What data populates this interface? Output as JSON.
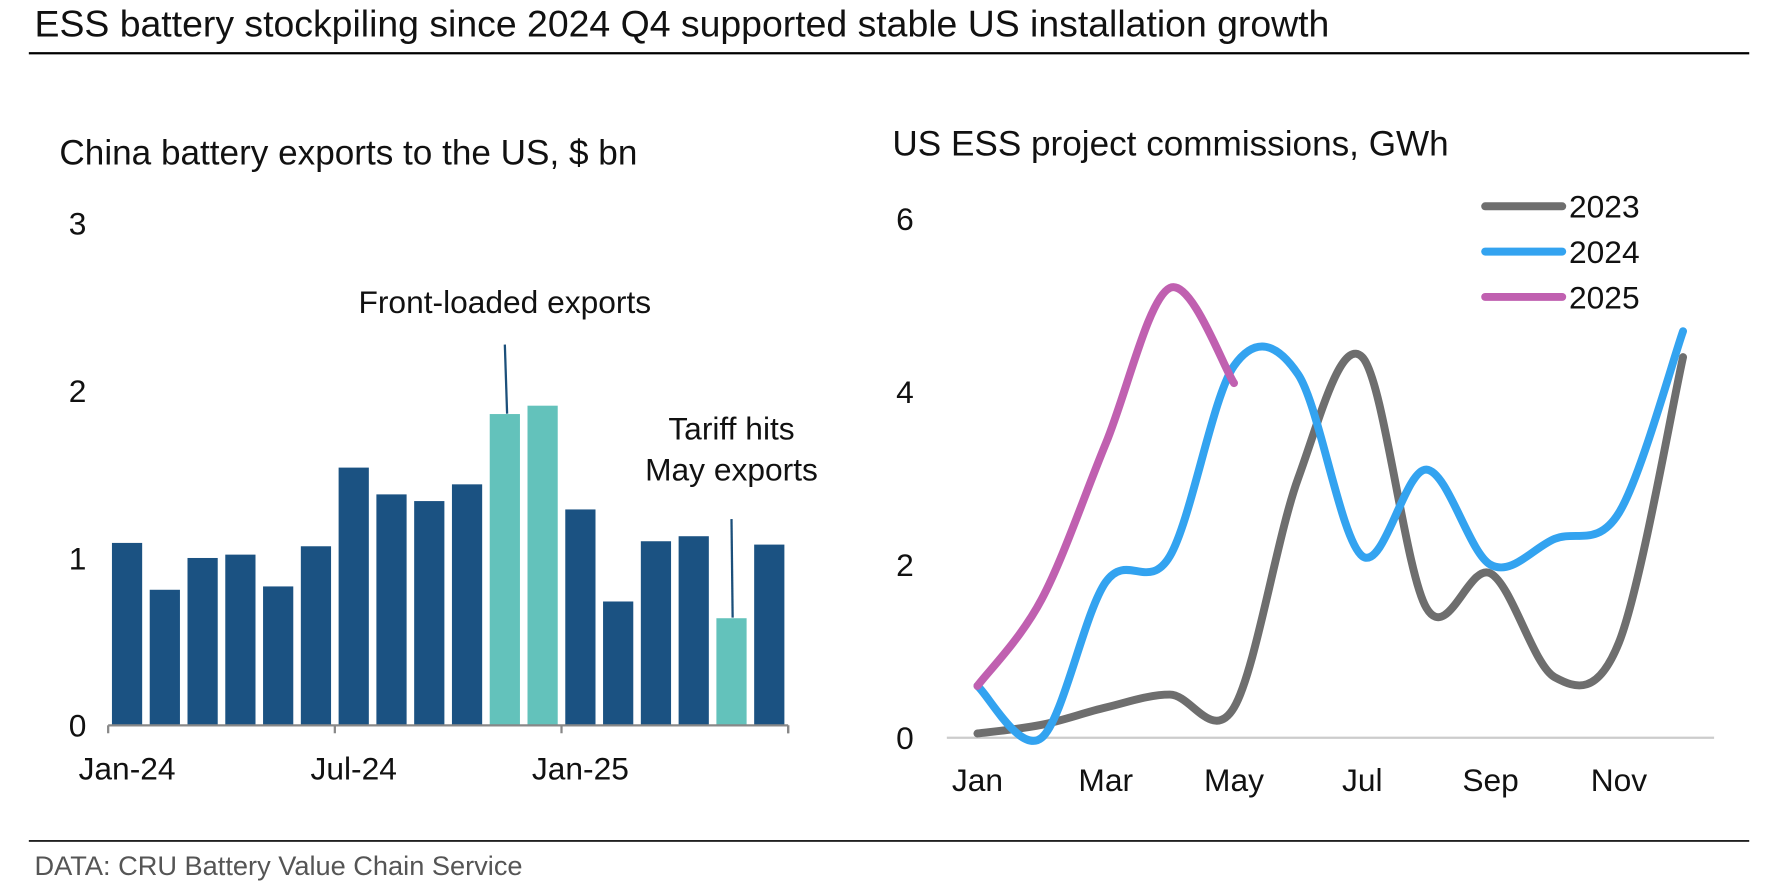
{
  "title": "ESS battery stockpiling since 2024 Q4 supported stable US installation growth",
  "source": "DATA: CRU Battery Value Chain Service",
  "chart_data": [
    {
      "type": "bar",
      "title": "China battery exports to the US, $ bn",
      "categories": [
        "Jan-24",
        null,
        null,
        null,
        null,
        null,
        "Jul-24",
        null,
        null,
        null,
        null,
        null,
        "Jan-25",
        null,
        null,
        null,
        null,
        null
      ],
      "values": [
        1.09,
        0.81,
        1.0,
        1.02,
        0.83,
        1.07,
        1.54,
        1.38,
        1.34,
        1.44,
        1.86,
        1.91,
        1.29,
        0.74,
        1.1,
        1.13,
        0.64,
        1.08
      ],
      "colors": [
        "#1b5282",
        "#1b5282",
        "#1b5282",
        "#1b5282",
        "#1b5282",
        "#1b5282",
        "#1b5282",
        "#1b5282",
        "#1b5282",
        "#1b5282",
        "#63c2bb",
        "#63c2bb",
        "#1b5282",
        "#1b5282",
        "#1b5282",
        "#1b5282",
        "#63c2bb",
        "#1b5282"
      ],
      "ylim": [
        0,
        3
      ],
      "yticks": [
        0,
        1,
        2,
        3
      ],
      "annotations": [
        "Front-loaded exports",
        "Tariff hits",
        "May exports"
      ]
    },
    {
      "type": "line",
      "title": "US ESS project commissions, GWh",
      "categories": [
        "Jan",
        null,
        "Mar",
        null,
        "May",
        null,
        "Jul",
        null,
        "Sep",
        null,
        "Nov",
        null
      ],
      "series": [
        {
          "name": "2023",
          "color": "#6e6e6e",
          "values": [
            0.05,
            0.15,
            0.35,
            0.5,
            0.35,
            3.0,
            4.4,
            1.5,
            1.9,
            0.7,
            1.1,
            4.4
          ]
        },
        {
          "name": "2024",
          "color": "#33a3f0",
          "values": [
            0.6,
            0.0,
            1.8,
            2.1,
            4.3,
            4.2,
            2.1,
            3.1,
            2.0,
            2.3,
            2.6,
            4.7
          ]
        },
        {
          "name": "2025",
          "color": "#c060b0",
          "values": [
            0.6,
            1.6,
            3.4,
            5.2,
            4.1,
            null,
            null,
            null,
            null,
            null,
            null,
            null
          ]
        }
      ],
      "ylim": [
        0,
        6
      ],
      "yticks": [
        0,
        2,
        4,
        6
      ],
      "legend": "top-right"
    }
  ]
}
